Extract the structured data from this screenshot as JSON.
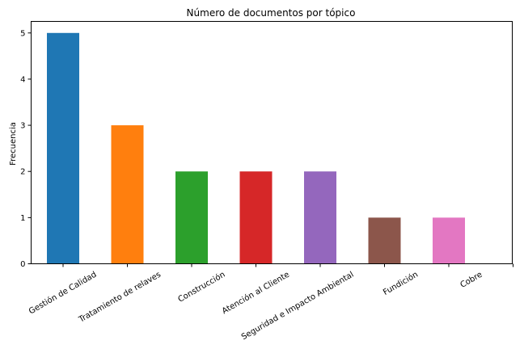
{
  "chart_data": {
    "type": "bar",
    "title": "Número de documentos por tópico",
    "xlabel": "",
    "ylabel": "Frecuencia",
    "categories": [
      "Gestión de Calidad",
      "Tratamiento de relaves",
      "Construcción",
      "Atención al Cliente",
      "Seguridad e Impacto Ambiental",
      "Fundición",
      "Cobre"
    ],
    "values": [
      5,
      3,
      2,
      2,
      2,
      1,
      1
    ],
    "colors": [
      "#1f77b4",
      "#ff7f0e",
      "#2ca02c",
      "#d62728",
      "#9467bd",
      "#8c564b",
      "#e377c2"
    ],
    "ylim": [
      0,
      5.25
    ],
    "yticks": [
      "0",
      "1",
      "2",
      "3",
      "4",
      "5"
    ],
    "grid": false
  }
}
